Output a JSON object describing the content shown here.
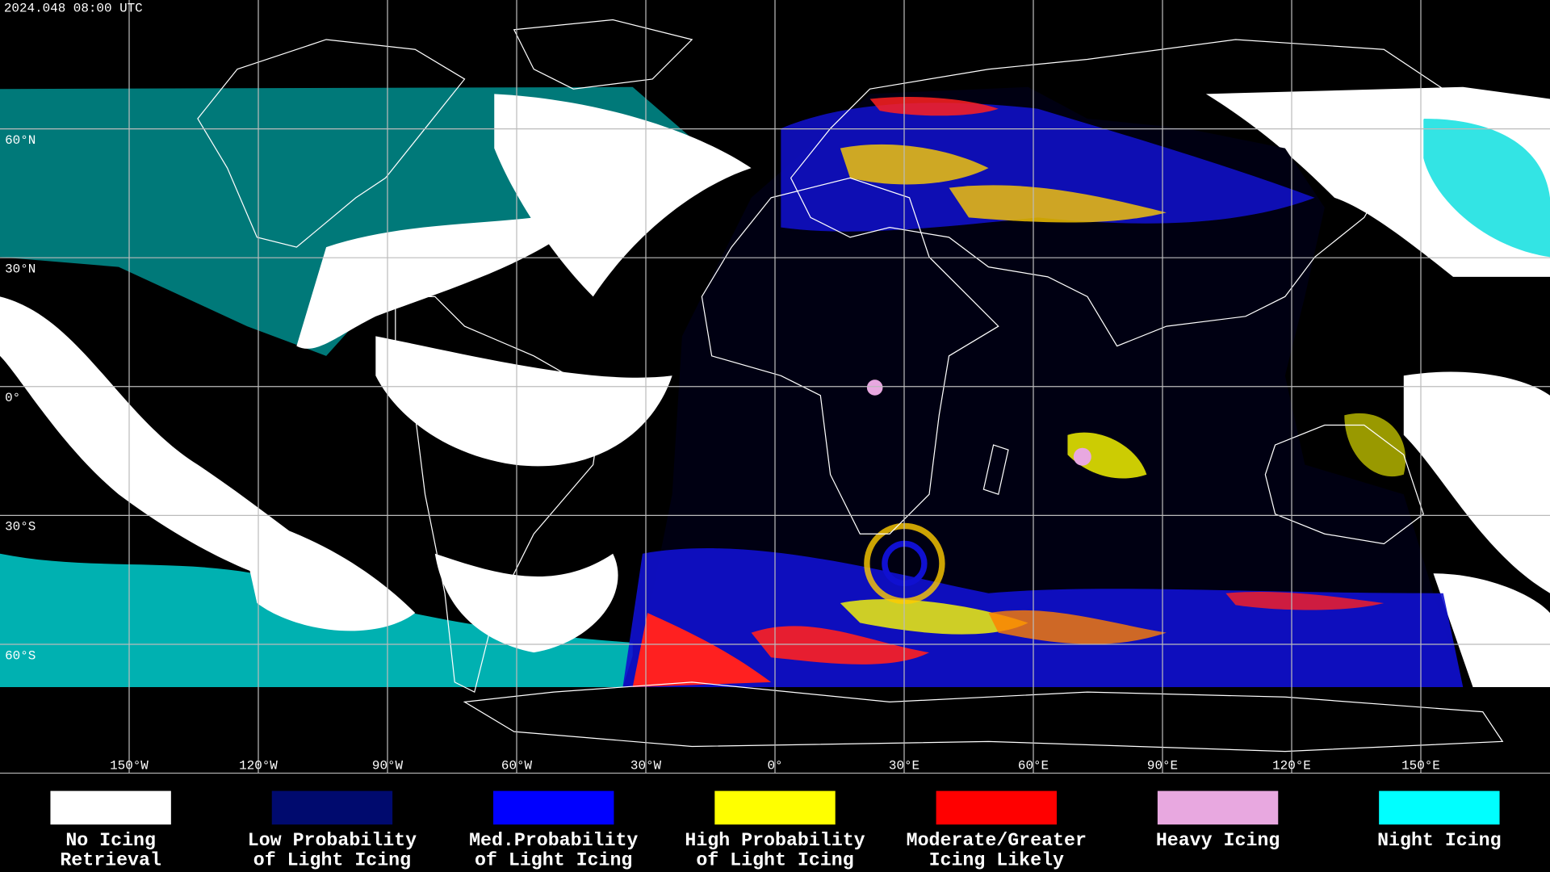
{
  "timestamp": "2024.048 08:00 UTC",
  "grid": {
    "longitudes": [
      {
        "value": -150,
        "label": "150°W"
      },
      {
        "value": -120,
        "label": "120°W"
      },
      {
        "value": -90,
        "label": "90°W"
      },
      {
        "value": -60,
        "label": "60°W"
      },
      {
        "value": -30,
        "label": "30°W"
      },
      {
        "value": 0,
        "label": "0°"
      },
      {
        "value": 30,
        "label": "30°E"
      },
      {
        "value": 60,
        "label": "60°E"
      },
      {
        "value": 90,
        "label": "90°E"
      },
      {
        "value": 120,
        "label": "120°E"
      },
      {
        "value": 150,
        "label": "150°E"
      }
    ],
    "latitudes": [
      {
        "value": 60,
        "label": "60°N"
      },
      {
        "value": 30,
        "label": "30°N"
      },
      {
        "value": 0,
        "label": "0°"
      },
      {
        "value": -30,
        "label": "30°S"
      },
      {
        "value": -60,
        "label": "60°S"
      }
    ]
  },
  "legend": [
    {
      "color": "#ffffff",
      "label": [
        "No Icing",
        "Retrieval"
      ]
    },
    {
      "color": "#000a6e",
      "label": [
        "Low Probability",
        "of Light Icing"
      ]
    },
    {
      "color": "#0000ff",
      "label": [
        "Med.Probability",
        "of Light Icing"
      ]
    },
    {
      "color": "#ffff00",
      "label": [
        "High Probability",
        "of Light Icing"
      ]
    },
    {
      "color": "#ff0000",
      "label": [
        "Moderate/Greater",
        "Icing Likely"
      ]
    },
    {
      "color": "#e8a8e0",
      "label": [
        "Heavy Icing"
      ]
    },
    {
      "color": "#00ffff",
      "label": [
        "Night Icing"
      ]
    }
  ]
}
